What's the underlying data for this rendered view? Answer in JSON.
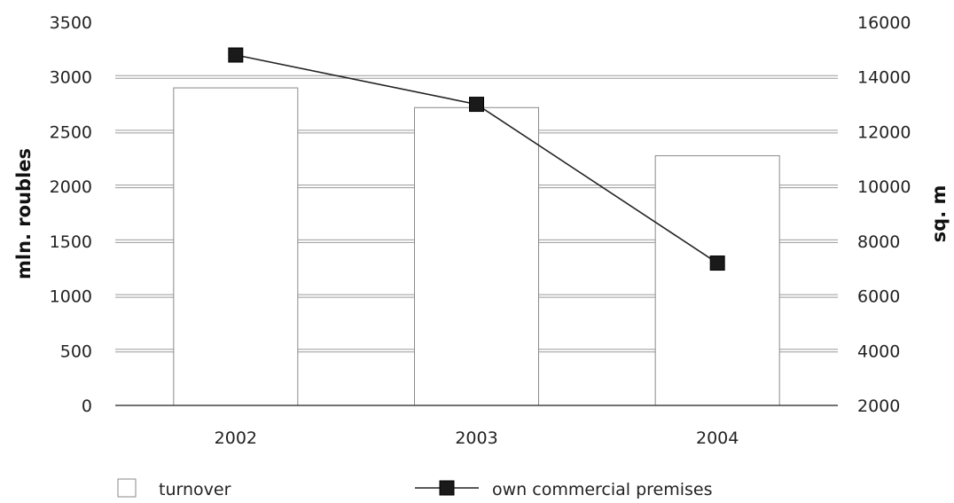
{
  "chart_data": {
    "type": "bar",
    "categories": [
      "2002",
      "2003",
      "2004"
    ],
    "series": [
      {
        "name": "turnover",
        "type": "bar",
        "axis": "left",
        "values": [
          2900,
          2720,
          2280
        ]
      },
      {
        "name": "own commercial premises",
        "type": "line",
        "axis": "right",
        "values": [
          14800,
          13000,
          7200
        ]
      }
    ],
    "ylabel": "mln. roubles",
    "y2label": "sq. m",
    "ylim": [
      0,
      3500
    ],
    "y2lim": [
      2000,
      16000
    ],
    "yticks": [
      "0",
      "500",
      "1000",
      "1500",
      "2000",
      "2500",
      "3000",
      "3500"
    ],
    "y2ticks": [
      "2000",
      "4000",
      "6000",
      "8000",
      "10000",
      "12000",
      "14000",
      "16000"
    ],
    "grid": true,
    "legend_position": "bottom",
    "colors": {
      "bar_edge": "#8a8a8a",
      "line": "#222222",
      "marker": "#1a1a1a",
      "axis": "#444444",
      "grid": "#9a9a9a"
    }
  }
}
